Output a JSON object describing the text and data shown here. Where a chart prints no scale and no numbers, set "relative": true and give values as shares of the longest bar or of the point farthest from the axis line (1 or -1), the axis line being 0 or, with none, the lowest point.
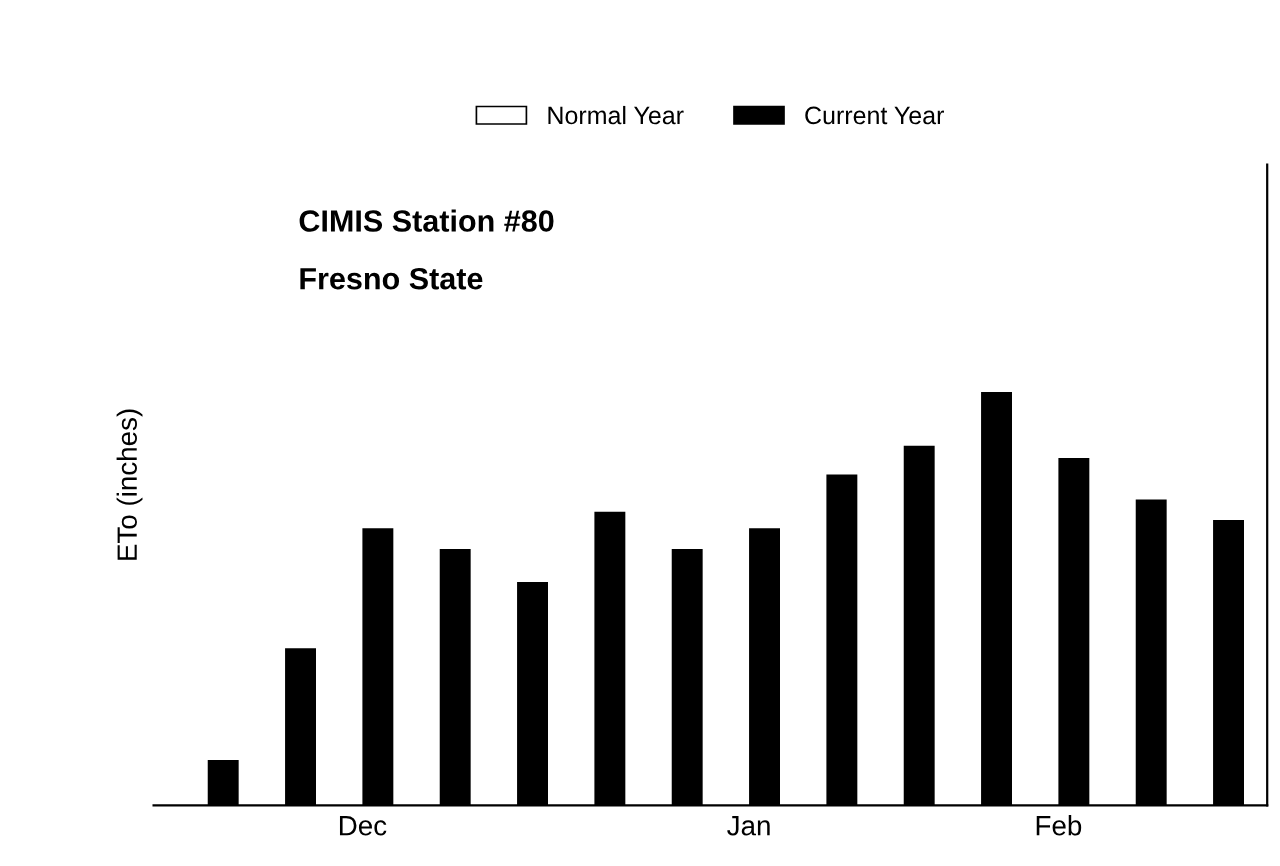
{
  "chart_data": {
    "type": "bar",
    "relative": true,
    "ylabel": "ETo (inches)",
    "legend": "top",
    "categories": [
      null,
      null,
      "Dec",
      null,
      null,
      null,
      null,
      "Jan",
      null,
      null,
      null,
      "Feb",
      null,
      null
    ],
    "series": [
      {
        "name": "Normal Year",
        "color": "#ffffff",
        "values": [
          null,
          null,
          null,
          null,
          null,
          null,
          null,
          null,
          null,
          null,
          null,
          null,
          null,
          null
        ]
      },
      {
        "name": "Current Year",
        "color": "#000000",
        "values": [
          0.11,
          0.38,
          0.67,
          0.62,
          0.54,
          0.71,
          0.62,
          0.67,
          0.8,
          0.87,
          1.0,
          0.84,
          0.74,
          0.69
        ]
      }
    ],
    "annotations": [
      "CIMIS Station #80",
      "Fresno State"
    ],
    "tick_labels": "x"
  }
}
